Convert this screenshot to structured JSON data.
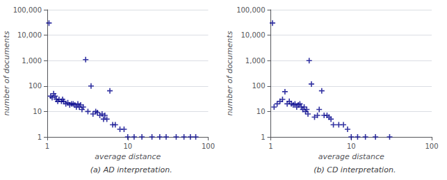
{
  "chart_data": [
    {
      "type": "scatter",
      "title": "(a) AD interpretation.",
      "xlabel": "average distance",
      "ylabel": "number of documents",
      "x": [
        1.05,
        1.1,
        1.15,
        1.2,
        1.25,
        1.3,
        1.35,
        1.4,
        1.5,
        1.55,
        1.6,
        1.7,
        1.8,
        1.9,
        2.0,
        2.1,
        2.2,
        2.3,
        2.4,
        2.5,
        2.6,
        2.7,
        2.8,
        3.0,
        3.2,
        3.5,
        3.7,
        4.0,
        4.2,
        4.5,
        4.8,
        5.0,
        5.2,
        5.5,
        6.0,
        6.5,
        7.0,
        8.0,
        9.0,
        10.0,
        12.0,
        15.0,
        20.0,
        25.0,
        30.0,
        40.0,
        50.0,
        60.0,
        70.0
      ],
      "values": [
        30000,
        40,
        35,
        50,
        40,
        30,
        25,
        30,
        25,
        30,
        25,
        20,
        22,
        18,
        20,
        20,
        18,
        15,
        20,
        15,
        18,
        12,
        15,
        1100,
        10,
        100,
        8,
        10,
        9,
        7,
        8,
        5,
        7,
        5,
        65,
        3,
        3,
        2,
        2,
        1,
        1,
        1,
        1,
        1,
        1,
        1,
        1,
        1,
        1
      ],
      "color": "#00008B",
      "marker": "+",
      "log": true,
      "grid": true,
      "xlim": [
        1,
        100
      ],
      "ylim": [
        1,
        100000
      ],
      "xticks": [
        1,
        10,
        100
      ],
      "yticks": [
        1,
        10,
        100,
        {
          "value": 1000,
          "label": "1,000"
        },
        {
          "value": 10000,
          "label": "10,000"
        },
        {
          "value": 100000,
          "label": "100,000"
        }
      ]
    },
    {
      "type": "scatter",
      "title": "(b) CD interpretation.",
      "xlabel": "average distance",
      "ylabel": "number of documents",
      "x": [
        1.05,
        1.1,
        1.2,
        1.3,
        1.4,
        1.5,
        1.6,
        1.7,
        1.8,
        1.9,
        2.0,
        2.1,
        2.2,
        2.3,
        2.4,
        2.5,
        2.6,
        2.7,
        2.8,
        2.9,
        3.0,
        3.2,
        3.5,
        3.8,
        4.0,
        4.3,
        4.6,
        5.0,
        5.3,
        5.6,
        6.0,
        7.0,
        8.0,
        9.0,
        10.0,
        12.0,
        15.0,
        20.0,
        30.0
      ],
      "values": [
        30000,
        15,
        20,
        25,
        30,
        60,
        20,
        25,
        20,
        18,
        20,
        15,
        18,
        20,
        15,
        12,
        15,
        10,
        12,
        8,
        1000,
        120,
        6,
        7,
        12,
        65,
        7,
        7,
        6,
        5,
        3,
        3,
        3,
        2,
        1,
        1,
        1,
        1,
        1
      ],
      "color": "#00008B",
      "marker": "+",
      "log": true,
      "grid": true,
      "xlim": [
        1,
        100
      ],
      "ylim": [
        1,
        100000
      ],
      "xticks": [
        1,
        10,
        100
      ],
      "yticks": [
        1,
        10,
        100,
        {
          "value": 1000,
          "label": "1,000"
        },
        {
          "value": 10000,
          "label": "10,000"
        },
        {
          "value": 100000,
          "label": "100,000"
        }
      ]
    }
  ]
}
